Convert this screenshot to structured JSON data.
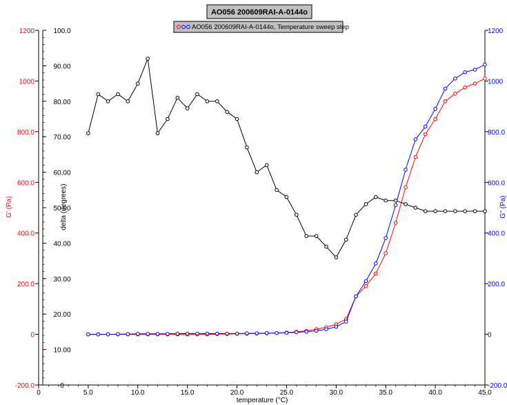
{
  "chart_data": {
    "type": "line",
    "title": "AO056 200609RAI-A-0144o",
    "legend": {
      "label": "AO056 200609RAI-A-0144o, Temperature sweep step",
      "position": "top-center"
    },
    "xlabel": "temperature (°C)",
    "xlim": [
      0,
      45
    ],
    "x_ticks": [
      "0",
      "5.0",
      "10.0",
      "15.0",
      "20.0",
      "25.0",
      "30.0",
      "35.0",
      "40.0",
      "45.0"
    ],
    "y_left": {
      "label": "G' (Pa)",
      "color": "#ff0000",
      "lim": [
        -200,
        1200
      ],
      "ticks": [
        "-200.0",
        "0",
        "200.0",
        "400.0",
        "600.0",
        "800.0",
        "1000",
        "1200"
      ]
    },
    "y_delta": {
      "label": "delta (degrees)",
      "color": "#000000",
      "lim": [
        0,
        100
      ],
      "ticks": [
        "0",
        "10.00",
        "20.00",
        "30.00",
        "40.00",
        "50.00",
        "60.00",
        "70.00",
        "80.00",
        "90.00",
        "100.0"
      ]
    },
    "y_right": {
      "label": "G'' (Pa)",
      "color": "#0000ff",
      "lim": [
        -200,
        1200
      ],
      "ticks": [
        "-200.0",
        "0",
        "200.0",
        "400.0",
        "600.0",
        "800.0",
        "1000",
        "1200"
      ]
    },
    "series": [
      {
        "name": "G'",
        "axis": "left",
        "color": "#ff0000",
        "x": [
          5,
          6,
          7,
          8,
          9,
          10,
          11,
          12,
          13,
          14,
          15,
          16,
          17,
          18,
          19,
          20,
          21,
          22,
          23,
          24,
          25,
          26,
          27,
          28,
          29,
          30,
          31,
          32,
          33,
          34,
          35,
          36,
          37,
          38,
          39,
          40,
          41,
          42,
          43,
          44,
          45
        ],
        "y": [
          0,
          0,
          0,
          0,
          0,
          0,
          0,
          0,
          0,
          0,
          0,
          0,
          0,
          1,
          1,
          2,
          2,
          3,
          4,
          5,
          7,
          10,
          14,
          20,
          28,
          40,
          60,
          150,
          190,
          240,
          320,
          440,
          580,
          700,
          790,
          850,
          920,
          950,
          975,
          990,
          1010
        ]
      },
      {
        "name": "G''",
        "axis": "right",
        "color": "#0000ff",
        "x": [
          5,
          6,
          7,
          8,
          9,
          10,
          11,
          12,
          13,
          14,
          15,
          16,
          17,
          18,
          19,
          20,
          21,
          22,
          23,
          24,
          25,
          26,
          27,
          28,
          29,
          30,
          31,
          32,
          33,
          34,
          35,
          36,
          37,
          38,
          39,
          40,
          41,
          42,
          43,
          44,
          45
        ],
        "y": [
          0,
          0,
          0,
          1,
          1,
          2,
          2,
          2,
          2,
          3,
          3,
          3,
          3,
          3,
          3,
          3,
          4,
          4,
          5,
          5,
          6,
          8,
          10,
          14,
          20,
          30,
          50,
          150,
          210,
          280,
          380,
          510,
          650,
          770,
          820,
          890,
          970,
          1010,
          1035,
          1045,
          1065
        ]
      },
      {
        "name": "delta",
        "axis": "delta",
        "color": "#000000",
        "x": [
          5,
          6,
          7,
          8,
          9,
          10,
          11,
          12,
          13,
          14,
          15,
          16,
          17,
          18,
          19,
          20,
          21,
          22,
          23,
          24,
          25,
          26,
          27,
          28,
          29,
          30,
          31,
          32,
          33,
          34,
          35,
          36,
          37,
          38,
          39,
          40,
          41,
          42,
          43,
          44,
          45
        ],
        "y": [
          71,
          82,
          80,
          82,
          80,
          85,
          92,
          71,
          75,
          81,
          78,
          82,
          80,
          80,
          77,
          75,
          67,
          60,
          62,
          55,
          53,
          48,
          42,
          42,
          39,
          36,
          41,
          48,
          51,
          53,
          52,
          52,
          51,
          50,
          49,
          49,
          49,
          49,
          49,
          49,
          49
        ]
      }
    ]
  }
}
